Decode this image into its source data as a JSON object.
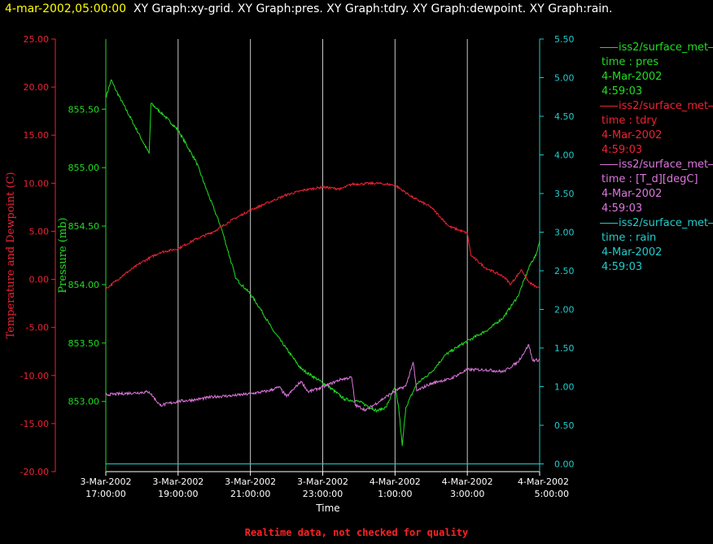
{
  "header": {
    "timestamp": "4-mar-2002,05:00:00",
    "graphs": "XY Graph:xy-grid.  XY Graph:pres.  XY Graph:tdry.  XY Graph:dewpoint.  XY Graph:rain."
  },
  "footer": "Realtime data, not checked for quality",
  "legend": [
    {
      "source": "iss2/surface_met",
      "var": "time : pres",
      "date": "4-Mar-2002",
      "time": "4:59:03",
      "color": "#22dd22"
    },
    {
      "source": "iss2/surface_met",
      "var": "time : tdry",
      "date": "4-Mar-2002",
      "time": "4:59:03",
      "color": "#ee2233"
    },
    {
      "source": "iss2/surface_met",
      "var": "time : [T_d][degC]",
      "date": "4-Mar-2002",
      "time": "4:59:03",
      "color": "#dd77dd"
    },
    {
      "source": "iss2/surface_met",
      "var": "time : rain",
      "date": "4-Mar-2002",
      "time": "4:59:03",
      "color": "#22cccc"
    }
  ],
  "chart_data": {
    "type": "line",
    "xlabel": "Time",
    "x_ticks": [
      {
        "h": 17,
        "label": [
          "3-Mar-2002",
          "17:00:00"
        ]
      },
      {
        "h": 19,
        "label": [
          "3-Mar-2002",
          "19:00:00"
        ]
      },
      {
        "h": 21,
        "label": [
          "3-Mar-2002",
          "21:00:00"
        ]
      },
      {
        "h": 23,
        "label": [
          "3-Mar-2002",
          "23:00:00"
        ]
      },
      {
        "h": 25,
        "label": [
          "4-Mar-2002",
          "1:00:00"
        ]
      },
      {
        "h": 27,
        "label": [
          "4-Mar-2002",
          "3:00:00"
        ]
      },
      {
        "h": 29,
        "label": [
          "4-Mar-2002",
          "5:00:00"
        ]
      }
    ],
    "xlim": [
      17,
      29
    ],
    "axes": {
      "temp": {
        "label": "Temperature and Dewpoint (C)",
        "ylim": [
          -20,
          25
        ],
        "ticks": [
          "25.00",
          "20.00",
          "15.00",
          "10.00",
          "5.00",
          "0.00",
          "-5.00",
          "-10.00",
          "-15.00",
          "-20.00"
        ],
        "color": "#ee2233"
      },
      "pres": {
        "label": "Pressure (mb)",
        "ylim": [
          852.4,
          856.1
        ],
        "ticks": [
          "855.50",
          "855.00",
          "854.50",
          "854.00",
          "853.50",
          "853.00"
        ],
        "color": "#22dd22"
      },
      "rain": {
        "ylim": [
          -0.1,
          5.5
        ],
        "ticks": [
          "5.50",
          "5.00",
          "4.50",
          "4.00",
          "3.50",
          "3.00",
          "2.50",
          "2.00",
          "1.50",
          "1.00",
          "0.50",
          "0.00"
        ],
        "color": "#22cccc"
      }
    },
    "series": [
      {
        "name": "pres",
        "axis": "pres",
        "color": "#22dd22",
        "noise": 0.025,
        "points": [
          [
            17,
            855.6
          ],
          [
            17.15,
            855.75
          ],
          [
            17.25,
            855.68
          ],
          [
            18.2,
            855.12
          ],
          [
            18.25,
            855.55
          ],
          [
            18.6,
            855.45
          ],
          [
            19,
            855.32
          ],
          [
            19.5,
            855.05
          ],
          [
            19.8,
            854.8
          ],
          [
            20.2,
            854.48
          ],
          [
            20.6,
            854.05
          ],
          [
            21,
            853.92
          ],
          [
            21.3,
            853.78
          ],
          [
            21.6,
            853.62
          ],
          [
            22,
            853.45
          ],
          [
            22.4,
            853.28
          ],
          [
            22.8,
            853.2
          ],
          [
            23.2,
            853.12
          ],
          [
            23.6,
            853.02
          ],
          [
            24,
            853.0
          ],
          [
            24.5,
            852.92
          ],
          [
            24.75,
            852.95
          ],
          [
            25,
            853.12
          ],
          [
            25.1,
            852.95
          ],
          [
            25.2,
            852.62
          ],
          [
            25.3,
            852.95
          ],
          [
            25.6,
            853.15
          ],
          [
            26,
            853.25
          ],
          [
            26.4,
            853.4
          ],
          [
            26.8,
            853.48
          ],
          [
            27.2,
            853.55
          ],
          [
            27.6,
            853.62
          ],
          [
            28,
            853.72
          ],
          [
            28.4,
            853.9
          ],
          [
            28.75,
            854.18
          ],
          [
            28.9,
            854.25
          ],
          [
            29,
            854.38
          ]
        ]
      },
      {
        "name": "tdry",
        "axis": "temp",
        "color": "#ee2233",
        "noise": 0.25,
        "points": [
          [
            17,
            -1
          ],
          [
            17.5,
            0.5
          ],
          [
            18,
            1.8
          ],
          [
            18.5,
            2.8
          ],
          [
            19,
            3.2
          ],
          [
            19.5,
            4.2
          ],
          [
            20,
            5.0
          ],
          [
            20.5,
            6.2
          ],
          [
            21,
            7.2
          ],
          [
            21.5,
            8.0
          ],
          [
            22,
            8.8
          ],
          [
            22.5,
            9.3
          ],
          [
            23,
            9.6
          ],
          [
            23.5,
            9.4
          ],
          [
            23.8,
            9.9
          ],
          [
            24.5,
            10.0
          ],
          [
            25,
            9.8
          ],
          [
            25.5,
            8.5
          ],
          [
            26,
            7.5
          ],
          [
            26.5,
            5.5
          ],
          [
            27,
            4.8
          ],
          [
            27.1,
            2.5
          ],
          [
            27.5,
            1.2
          ],
          [
            28,
            0.3
          ],
          [
            28.2,
            -0.5
          ],
          [
            28.5,
            1.0
          ],
          [
            28.7,
            -0.3
          ],
          [
            29,
            -1
          ]
        ]
      },
      {
        "name": "dewpoint",
        "axis": "temp",
        "color": "#dd77dd",
        "noise": 0.3,
        "points": [
          [
            17,
            -12
          ],
          [
            18.2,
            -11.7
          ],
          [
            18.5,
            -13.1
          ],
          [
            19,
            -12.7
          ],
          [
            19.5,
            -12.5
          ],
          [
            20,
            -12.2
          ],
          [
            20.5,
            -12.1
          ],
          [
            21,
            -11.9
          ],
          [
            21.5,
            -11.6
          ],
          [
            21.8,
            -11.2
          ],
          [
            22,
            -12.2
          ],
          [
            22.4,
            -10.6
          ],
          [
            22.6,
            -11.7
          ],
          [
            23,
            -11.2
          ],
          [
            23.5,
            -10.4
          ],
          [
            23.8,
            -10.2
          ],
          [
            23.9,
            -13.1
          ],
          [
            24.2,
            -13.6
          ],
          [
            24.6,
            -12.6
          ],
          [
            25,
            -11.6
          ],
          [
            25.3,
            -11.1
          ],
          [
            25.5,
            -8.6
          ],
          [
            25.6,
            -11.6
          ],
          [
            25.9,
            -11.0
          ],
          [
            26.2,
            -10.6
          ],
          [
            26.5,
            -10.4
          ],
          [
            27,
            -9.4
          ],
          [
            27.5,
            -9.4
          ],
          [
            28,
            -9.6
          ],
          [
            28.4,
            -8.6
          ],
          [
            28.7,
            -6.8
          ],
          [
            28.8,
            -8.4
          ],
          [
            29,
            -8.4
          ]
        ]
      },
      {
        "name": "rain",
        "axis": "rain",
        "color": "#22cccc",
        "noise": 0,
        "points": [
          [
            17,
            0
          ],
          [
            29,
            0
          ]
        ]
      }
    ]
  }
}
